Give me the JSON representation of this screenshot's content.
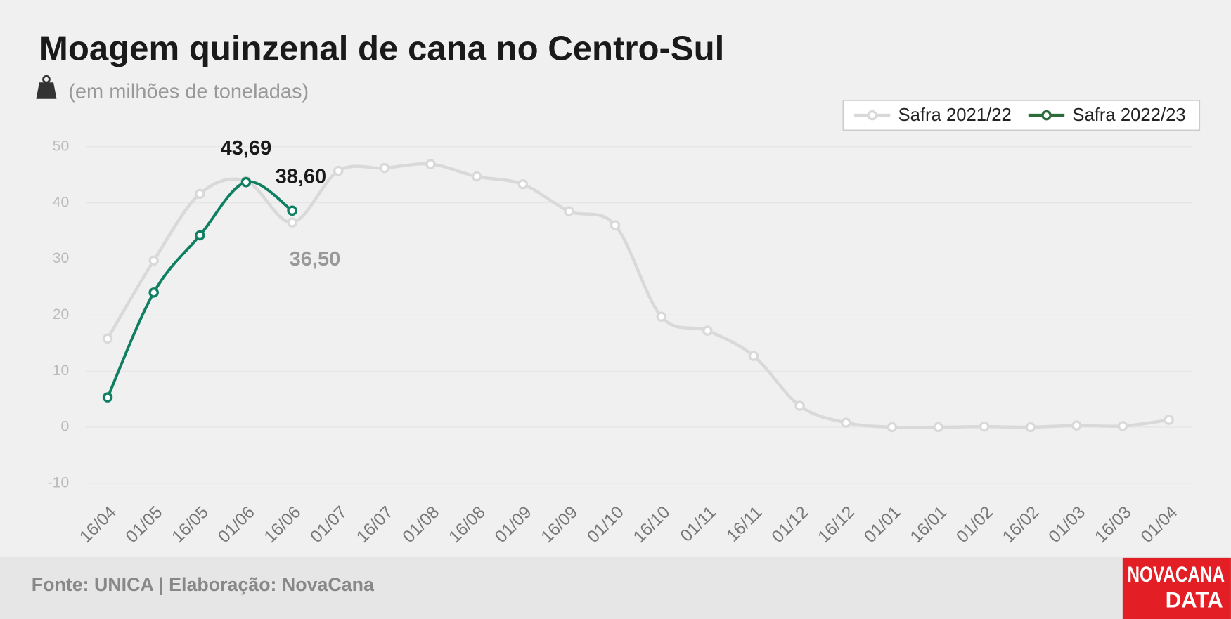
{
  "chart_data": {
    "type": "line",
    "title": "Moagem quinzenal de cana no Centro-Sul",
    "subtitle": "(em milhões de toneladas)",
    "categories": [
      "16/04",
      "01/05",
      "16/05",
      "01/06",
      "16/06",
      "01/07",
      "16/07",
      "01/08",
      "16/08",
      "01/09",
      "16/09",
      "01/10",
      "16/10",
      "01/11",
      "16/11",
      "01/12",
      "16/12",
      "01/01",
      "16/01",
      "01/02",
      "16/02",
      "01/03",
      "16/03",
      "01/04"
    ],
    "series": [
      {
        "name": "Safra 2021/22",
        "color": "#d9d9d9",
        "values": [
          15.8,
          29.7,
          41.6,
          43.9,
          36.5,
          45.7,
          46.2,
          46.9,
          44.7,
          43.3,
          38.5,
          36.0,
          19.7,
          17.2,
          12.7,
          3.8,
          0.8,
          0.0,
          0.0,
          0.1,
          0.0,
          0.3,
          0.2,
          1.3
        ],
        "value_labels": [
          null,
          null,
          null,
          null,
          "36,50",
          null,
          null,
          null,
          null,
          null,
          null,
          null,
          null,
          null,
          null,
          null,
          null,
          null,
          null,
          null,
          null,
          null,
          null,
          null
        ]
      },
      {
        "name": "Safra 2022/23",
        "color": "#0f7f62",
        "values": [
          5.3,
          24.0,
          34.2,
          43.69,
          38.6,
          null,
          null,
          null,
          null,
          null,
          null,
          null,
          null,
          null,
          null,
          null,
          null,
          null,
          null,
          null,
          null,
          null,
          null,
          null
        ],
        "value_labels": [
          null,
          null,
          null,
          "43,69",
          "38,60",
          null,
          null,
          null,
          null,
          null,
          null,
          null,
          null,
          null,
          null,
          null,
          null,
          null,
          null,
          null,
          null,
          null,
          null,
          null
        ]
      }
    ],
    "ylim": [
      -10,
      50
    ],
    "yticks": [
      -10,
      0,
      10,
      20,
      30,
      40,
      50
    ],
    "grid": true,
    "legend": "top-right"
  },
  "source": "Fonte: UNICA | Elaboração: NovaCana",
  "logo": [
    "NOVACANA",
    "DATA"
  ]
}
